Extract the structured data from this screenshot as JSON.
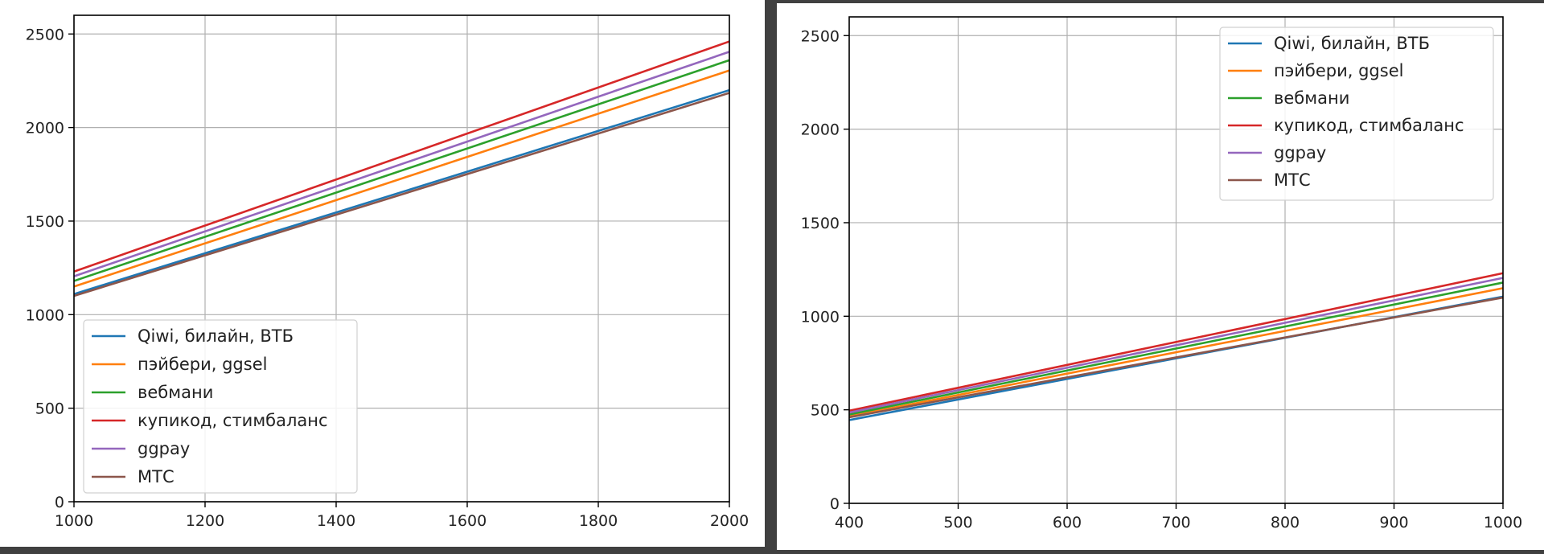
{
  "chart_data": [
    {
      "type": "line",
      "xlim": [
        1000,
        2000
      ],
      "ylim": [
        0,
        2600
      ],
      "xticks": [
        1000,
        1200,
        1400,
        1600,
        1800,
        2000
      ],
      "yticks": [
        0,
        500,
        1000,
        1500,
        2000,
        2500
      ],
      "grid": true,
      "legend_position": "lower-left",
      "series": [
        {
          "name": "Qiwi, билайн, ВТБ",
          "color": "#1f77b4",
          "x": [
            1000,
            2000
          ],
          "y": [
            1110,
            2200
          ]
        },
        {
          "name": "пэйбери, ggsel",
          "color": "#ff7f0e",
          "x": [
            1000,
            2000
          ],
          "y": [
            1150,
            2305
          ]
        },
        {
          "name": "вебмани",
          "color": "#2ca02c",
          "x": [
            1000,
            2000
          ],
          "y": [
            1180,
            2360
          ]
        },
        {
          "name": "купикод, стимбаланс",
          "color": "#d62728",
          "x": [
            1000,
            2000
          ],
          "y": [
            1230,
            2460
          ]
        },
        {
          "name": "ggpay",
          "color": "#9467bd",
          "x": [
            1000,
            2000
          ],
          "y": [
            1205,
            2405
          ]
        },
        {
          "name": "МТС",
          "color": "#8c564b",
          "x": [
            1000,
            2000
          ],
          "y": [
            1100,
            2185
          ]
        }
      ]
    },
    {
      "type": "line",
      "xlim": [
        400,
        1000
      ],
      "ylim": [
        0,
        2600
      ],
      "xticks": [
        400,
        500,
        600,
        700,
        800,
        900,
        1000
      ],
      "yticks": [
        0,
        500,
        1000,
        1500,
        2000,
        2500
      ],
      "grid": true,
      "legend_position": "upper-right",
      "series": [
        {
          "name": "Qiwi, билайн, ВТБ",
          "color": "#1f77b4",
          "x": [
            400,
            1000
          ],
          "y": [
            445,
            1105
          ]
        },
        {
          "name": "пэйбери, ggsel",
          "color": "#ff7f0e",
          "x": [
            400,
            1000
          ],
          "y": [
            465,
            1150
          ]
        },
        {
          "name": "вебмани",
          "color": "#2ca02c",
          "x": [
            400,
            1000
          ],
          "y": [
            475,
            1180
          ]
        },
        {
          "name": "купикод, стимбаланс",
          "color": "#d62728",
          "x": [
            400,
            1000
          ],
          "y": [
            495,
            1230
          ]
        },
        {
          "name": "ggpay",
          "color": "#9467bd",
          "x": [
            400,
            1000
          ],
          "y": [
            485,
            1205
          ]
        },
        {
          "name": "МТС",
          "color": "#8c564b",
          "x": [
            400,
            1000
          ],
          "y": [
            460,
            1100
          ]
        }
      ]
    }
  ]
}
